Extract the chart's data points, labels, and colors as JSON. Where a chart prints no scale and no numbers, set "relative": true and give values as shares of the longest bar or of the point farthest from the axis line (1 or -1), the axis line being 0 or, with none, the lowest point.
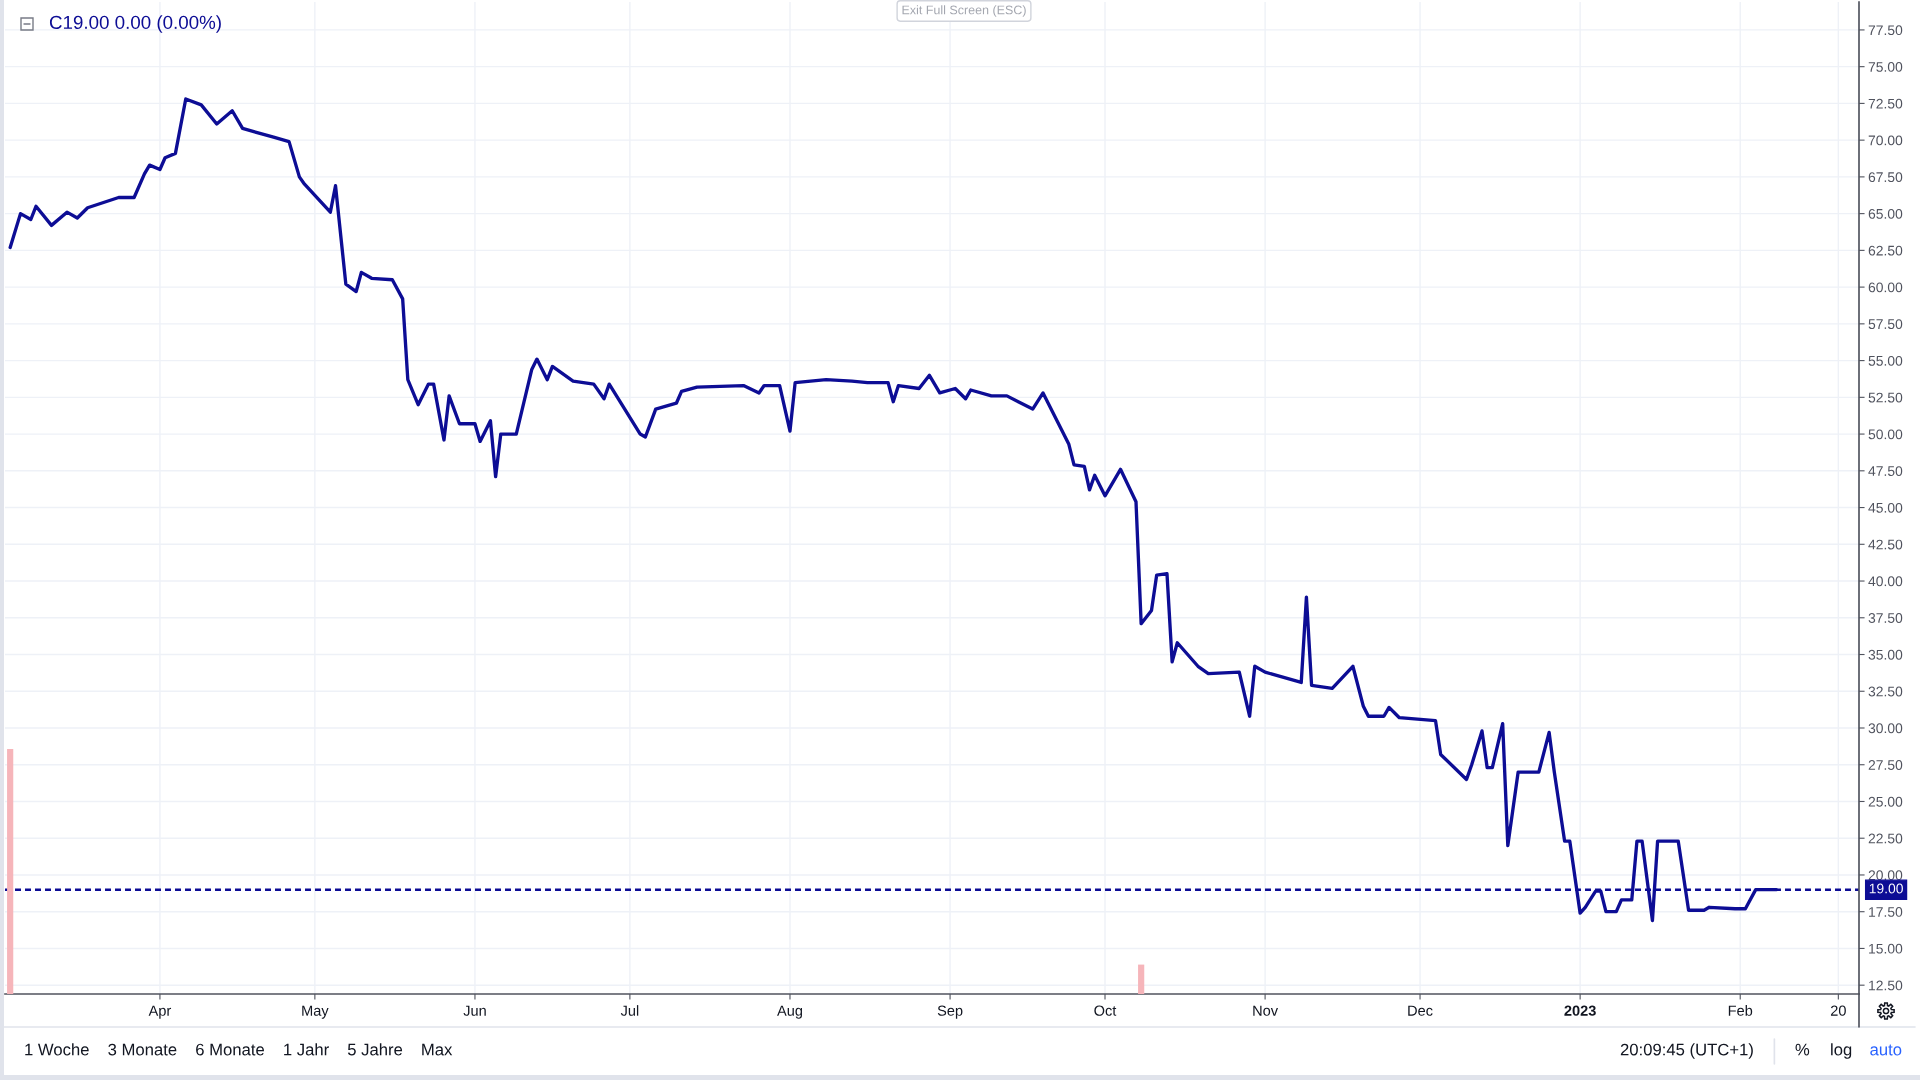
{
  "chart_data": [
    {
      "type": "line",
      "title": "C19.00 0.00 (0.00%)",
      "x": [
        "2022-03-03",
        "2022-03-05",
        "2022-03-07",
        "2022-03-08",
        "2022-03-11",
        "2022-03-14",
        "2022-03-16",
        "2022-03-18",
        "2022-03-24",
        "2022-03-27",
        "2022-03-29",
        "2022-03-30",
        "2022-04-01",
        "2022-04-02",
        "2022-04-04",
        "2022-04-06",
        "2022-04-09",
        "2022-04-12",
        "2022-04-15",
        "2022-04-17",
        "2022-04-23",
        "2022-04-26",
        "2022-04-28",
        "2022-04-29",
        "2022-05-04",
        "2022-05-05",
        "2022-05-07",
        "2022-05-09",
        "2022-05-10",
        "2022-05-12",
        "2022-05-16",
        "2022-05-18",
        "2022-05-19",
        "2022-05-21",
        "2022-05-23",
        "2022-05-24",
        "2022-05-26",
        "2022-05-27",
        "2022-05-29",
        "2022-06-01",
        "2022-06-02",
        "2022-06-04",
        "2022-06-05",
        "2022-06-06",
        "2022-06-09",
        "2022-06-12",
        "2022-06-13",
        "2022-06-15",
        "2022-06-16",
        "2022-06-20",
        "2022-06-24",
        "2022-06-26",
        "2022-06-27",
        "2022-07-03",
        "2022-07-04",
        "2022-07-06",
        "2022-07-10",
        "2022-07-11",
        "2022-07-14",
        "2022-07-23",
        "2022-07-26",
        "2022-07-27",
        "2022-07-30",
        "2022-08-01",
        "2022-08-02",
        "2022-08-08",
        "2022-08-13",
        "2022-08-16",
        "2022-08-20",
        "2022-08-21",
        "2022-08-22",
        "2022-08-26",
        "2022-08-28",
        "2022-08-30",
        "2022-09-02",
        "2022-09-04",
        "2022-09-05",
        "2022-09-09",
        "2022-09-12",
        "2022-09-17",
        "2022-09-19",
        "2022-09-23",
        "2022-09-24",
        "2022-09-25",
        "2022-09-27",
        "2022-09-28",
        "2022-09-29",
        "2022-10-01",
        "2022-10-04",
        "2022-10-07",
        "2022-10-08",
        "2022-10-10",
        "2022-10-11",
        "2022-10-13",
        "2022-10-14",
        "2022-10-15",
        "2022-10-19",
        "2022-10-21",
        "2022-10-27",
        "2022-10-29",
        "2022-10-30",
        "2022-11-01",
        "2022-11-08",
        "2022-11-09",
        "2022-11-10",
        "2022-11-14",
        "2022-11-18",
        "2022-11-20",
        "2022-11-21",
        "2022-11-24",
        "2022-11-25",
        "2022-11-27",
        "2022-12-04",
        "2022-12-05",
        "2022-12-10",
        "2022-12-11",
        "2022-12-13",
        "2022-12-14",
        "2022-12-15",
        "2022-12-17",
        "2022-12-18",
        "2022-12-20",
        "2022-12-24",
        "2022-12-26",
        "2022-12-27",
        "2022-12-29",
        "2022-12-30",
        "2023-01-01",
        "2023-01-02",
        "2023-01-04",
        "2023-01-05",
        "2023-01-06",
        "2023-01-08",
        "2023-01-09",
        "2023-01-11",
        "2023-01-12",
        "2023-01-13",
        "2023-01-15",
        "2023-01-16",
        "2023-01-20",
        "2023-01-22",
        "2023-01-25",
        "2023-01-26",
        "2023-01-31",
        "2023-02-02",
        "2023-02-04",
        "2023-02-08"
      ],
      "series": [
        {
          "color": "#0d0d95",
          "values": [
            62.7,
            65.0,
            64.6,
            65.5,
            64.2,
            65.1,
            64.7,
            65.4,
            66.1,
            66.1,
            67.7,
            68.3,
            68.0,
            68.8,
            69.1,
            72.8,
            72.4,
            71.1,
            72.0,
            70.8,
            70.2,
            69.9,
            67.5,
            67.0,
            65.1,
            66.9,
            60.2,
            59.7,
            61.0,
            60.6,
            60.5,
            59.2,
            53.7,
            52.0,
            53.4,
            53.4,
            49.6,
            52.6,
            50.7,
            50.7,
            49.5,
            50.9,
            47.1,
            50.0,
            50.0,
            54.4,
            55.1,
            53.7,
            54.6,
            53.6,
            53.4,
            52.4,
            53.4,
            50.0,
            49.8,
            51.7,
            52.1,
            52.9,
            53.2,
            53.3,
            52.8,
            53.3,
            53.3,
            50.2,
            53.5,
            53.7,
            53.6,
            53.5,
            53.5,
            52.2,
            53.3,
            53.1,
            54.0,
            52.8,
            53.1,
            52.4,
            53.0,
            52.6,
            52.6,
            51.7,
            52.8,
            50.0,
            49.3,
            47.9,
            47.8,
            46.2,
            47.2,
            45.8,
            47.6,
            45.4,
            37.1,
            38.0,
            40.4,
            40.5,
            34.5,
            35.8,
            34.2,
            33.7,
            33.8,
            30.8,
            34.2,
            33.8,
            33.1,
            38.9,
            32.9,
            32.7,
            34.2,
            31.5,
            30.8,
            30.8,
            31.4,
            30.7,
            30.5,
            28.2,
            26.5,
            27.5,
            29.8,
            27.3,
            27.3,
            30.3,
            22.0,
            27.0,
            27.0,
            29.7,
            27.0,
            22.3,
            22.3,
            17.4,
            17.8,
            18.9,
            18.9,
            17.5,
            17.5,
            18.3,
            18.3,
            22.3,
            22.3,
            16.9,
            22.3,
            22.3,
            17.6,
            17.6,
            17.8,
            17.7,
            17.7,
            19.0,
            19.0
          ]
        }
      ],
      "xlim": [
        "2022-03-02",
        "2023-02-24"
      ],
      "xticks": [
        {
          "value": "2022-04-01",
          "label": "Apr"
        },
        {
          "value": "2022-05-01",
          "label": "May"
        },
        {
          "value": "2022-06-01",
          "label": "Jun"
        },
        {
          "value": "2022-07-01",
          "label": "Jul"
        },
        {
          "value": "2022-08-01",
          "label": "Aug"
        },
        {
          "value": "2022-09-01",
          "label": "Sep"
        },
        {
          "value": "2022-10-01",
          "label": "Oct"
        },
        {
          "value": "2022-11-01",
          "label": "Nov"
        },
        {
          "value": "2022-12-01",
          "label": "Dec"
        },
        {
          "value": "2023-01-01",
          "label": "2023"
        },
        {
          "value": "2023-02-01",
          "label": "Feb"
        },
        {
          "value": "2023-02-20",
          "label": "20"
        }
      ],
      "ylim": [
        11.9,
        79.4
      ],
      "yticks": [
        {
          "value": 12.5,
          "label": "12.50"
        },
        {
          "value": 15,
          "label": "15.00"
        },
        {
          "value": 17.5,
          "label": "17.50"
        },
        {
          "value": 20,
          "label": "20.00"
        },
        {
          "value": 22.5,
          "label": "22.50"
        },
        {
          "value": 25,
          "label": "25.00"
        },
        {
          "value": 27.5,
          "label": "27.50"
        },
        {
          "value": 30,
          "label": "30.00"
        },
        {
          "value": 32.5,
          "label": "32.50"
        },
        {
          "value": 35,
          "label": "35.00"
        },
        {
          "value": 37.5,
          "label": "37.50"
        },
        {
          "value": 40,
          "label": "40.00"
        },
        {
          "value": 42.5,
          "label": "42.50"
        },
        {
          "value": 45,
          "label": "45.00"
        },
        {
          "value": 47.5,
          "label": "47.50"
        },
        {
          "value": 50,
          "label": "50.00"
        },
        {
          "value": 52.5,
          "label": "52.50"
        },
        {
          "value": 55,
          "label": "55.00"
        },
        {
          "value": 57.5,
          "label": "57.50"
        },
        {
          "value": 60,
          "label": "60.00"
        },
        {
          "value": 62.5,
          "label": "62.50"
        },
        {
          "value": 65,
          "label": "65.00"
        },
        {
          "value": 67.5,
          "label": "67.50"
        },
        {
          "value": 70,
          "label": "70.00"
        },
        {
          "value": 72.5,
          "label": "72.50"
        },
        {
          "value": 75,
          "label": "75.00"
        },
        {
          "value": 77.5,
          "label": "77.50"
        }
      ],
      "grid": true,
      "ref_lines": [
        {
          "axis": "y",
          "value": 19.0,
          "label": "19.00",
          "color": "#0d0d95",
          "line_style": "dashed"
        }
      ],
      "annotations": [
        "Exit Full Screen (ESC)",
        "1 Woche",
        "3 Monate",
        "6 Monate",
        "1 Jahr",
        "5 Jahre",
        "Max",
        "20:09:45 (UTC+1)",
        "%",
        "log",
        "auto"
      ]
    },
    {
      "type": "bar",
      "relative": true,
      "x": [
        "2022-03-03",
        "2022-10-08"
      ],
      "values": [
        1,
        0.12
      ],
      "color": "#f6b5ba",
      "xlim": [
        "2022-03-02",
        "2023-02-24"
      ],
      "tick_labels": false
    }
  ]
}
